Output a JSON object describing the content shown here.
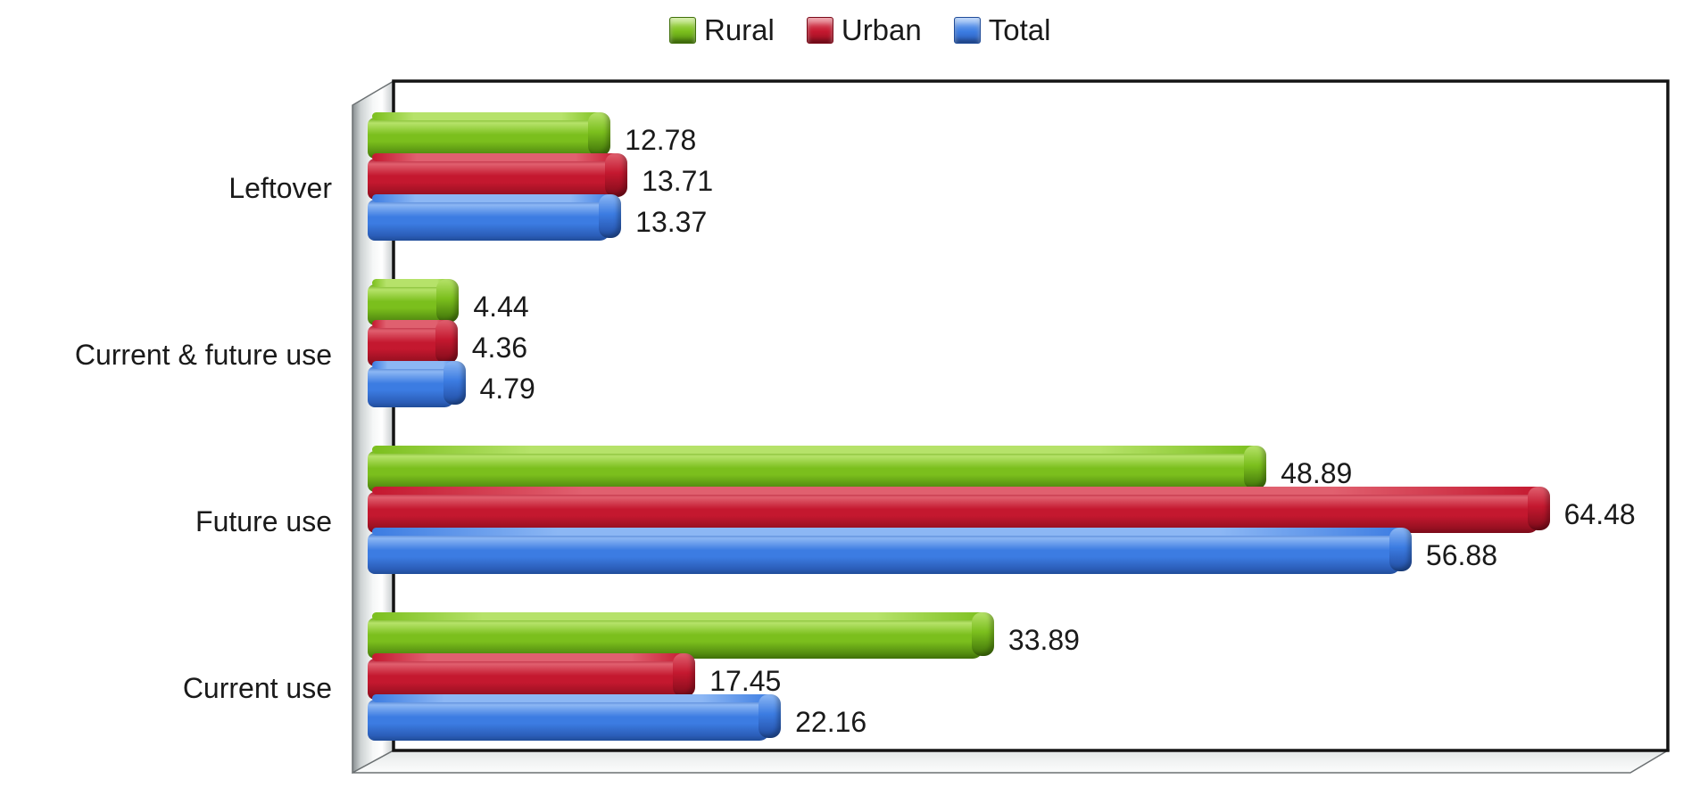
{
  "chart_data": {
    "type": "bar",
    "orientation": "horizontal",
    "style_3d": true,
    "title": "",
    "xlabel": "",
    "ylabel": "",
    "xlim": [
      0,
      70
    ],
    "grid": false,
    "legend_position": "top",
    "value_labels_shown": true,
    "categories": [
      "Leftover",
      "Current & future use",
      "Future use",
      "Current use"
    ],
    "series": [
      {
        "name": "Rural",
        "values": [
          12.78,
          4.44,
          48.89,
          33.89
        ],
        "color": "#7bbf1d",
        "color_light": "#b6e26a",
        "color_dark": "#538c10",
        "color_darker": "#3f6f09",
        "color_edge": "#69a816"
      },
      {
        "name": "Urban",
        "values": [
          13.71,
          4.36,
          64.48,
          17.45
        ],
        "color": "#c4182f",
        "color_light": "#e0606f",
        "color_dark": "#971021",
        "color_darker": "#7a0a19",
        "color_edge": "#ad1830"
      },
      {
        "name": "Total",
        "values": [
          13.37,
          4.79,
          56.88,
          22.16
        ],
        "color": "#3c7ce2",
        "color_light": "#8cb7f4",
        "color_dark": "#2b5db8",
        "color_darker": "#204c99",
        "color_edge": "#3a6fc8"
      }
    ],
    "frame_colors": {
      "back_wall_border": "#141414",
      "wall_silver_dark": "#878d8f",
      "wall_silver_light": "#ffffff"
    }
  }
}
